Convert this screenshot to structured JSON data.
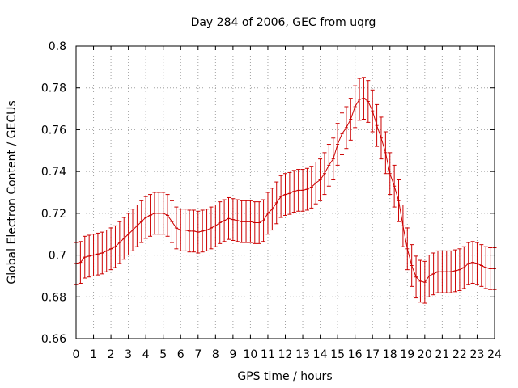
{
  "chart_data": {
    "type": "line",
    "title": "Day 284 of 2006, GEC from uqrg",
    "xlabel": "GPS time / hours",
    "ylabel": "Global Electron Content / GECUs",
    "xlim": [
      0,
      24
    ],
    "ylim": [
      0.66,
      0.8
    ],
    "xticks": [
      "0",
      "1",
      "2",
      "3",
      "4",
      "5",
      "6",
      "7",
      "8",
      "9",
      "10",
      "11",
      "12",
      "13",
      "14",
      "15",
      "16",
      "17",
      "18",
      "19",
      "20",
      "21",
      "22",
      "23",
      "24"
    ],
    "yticks": [
      "0.66",
      "0.68",
      "0.7",
      "0.72",
      "0.74",
      "0.76",
      "0.78",
      "0.8"
    ],
    "grid": true,
    "legend": "none",
    "error_bar": 0.01,
    "colors": {
      "series": "#cc0000",
      "grid": "#a0a0a0",
      "axis": "#000000"
    },
    "series": [
      {
        "x": [
          0,
          0.25,
          0.5,
          0.75,
          1,
          1.25,
          1.5,
          1.75,
          2,
          2.25,
          2.5,
          2.75,
          3,
          3.25,
          3.5,
          3.75,
          4,
          4.25,
          4.5,
          4.75,
          5,
          5.25,
          5.5,
          5.75,
          6,
          6.25,
          6.5,
          6.75,
          7,
          7.25,
          7.5,
          7.75,
          8,
          8.25,
          8.5,
          8.75,
          9,
          9.25,
          9.5,
          9.75,
          10,
          10.25,
          10.5,
          10.75,
          11,
          11.25,
          11.5,
          11.75,
          12,
          12.25,
          12.5,
          12.75,
          13,
          13.25,
          13.5,
          13.75,
          14,
          14.25,
          14.5,
          14.75,
          15,
          15.25,
          15.5,
          15.75,
          16,
          16.25,
          16.5,
          16.75,
          17,
          17.25,
          17.5,
          17.75,
          18,
          18.25,
          18.5,
          18.75,
          19,
          19.25,
          19.5,
          19.75,
          20,
          20.25,
          20.5,
          20.75,
          21,
          21.25,
          21.5,
          21.75,
          22,
          22.25,
          22.5,
          22.75,
          23,
          23.25,
          23.5,
          23.75,
          24
        ],
        "y": [
          0.696,
          0.6965,
          0.699,
          0.6995,
          0.7,
          0.7005,
          0.701,
          0.702,
          0.703,
          0.704,
          0.706,
          0.708,
          0.71,
          0.712,
          0.714,
          0.716,
          0.718,
          0.719,
          0.72,
          0.72,
          0.72,
          0.719,
          0.716,
          0.713,
          0.712,
          0.712,
          0.7115,
          0.7115,
          0.711,
          0.7115,
          0.712,
          0.713,
          0.714,
          0.7155,
          0.7165,
          0.7175,
          0.717,
          0.7165,
          0.716,
          0.716,
          0.716,
          0.7155,
          0.7155,
          0.7165,
          0.72,
          0.722,
          0.725,
          0.728,
          0.729,
          0.7295,
          0.7305,
          0.731,
          0.731,
          0.7315,
          0.7325,
          0.7345,
          0.736,
          0.739,
          0.743,
          0.746,
          0.753,
          0.758,
          0.761,
          0.765,
          0.771,
          0.7745,
          0.775,
          0.7735,
          0.769,
          0.762,
          0.756,
          0.749,
          0.739,
          0.733,
          0.726,
          0.714,
          0.703,
          0.695,
          0.6895,
          0.6875,
          0.687,
          0.69,
          0.691,
          0.692,
          0.692,
          0.692,
          0.692,
          0.6925,
          0.693,
          0.694,
          0.696,
          0.6965,
          0.696,
          0.695,
          0.694,
          0.6935,
          0.6935
        ]
      }
    ]
  }
}
